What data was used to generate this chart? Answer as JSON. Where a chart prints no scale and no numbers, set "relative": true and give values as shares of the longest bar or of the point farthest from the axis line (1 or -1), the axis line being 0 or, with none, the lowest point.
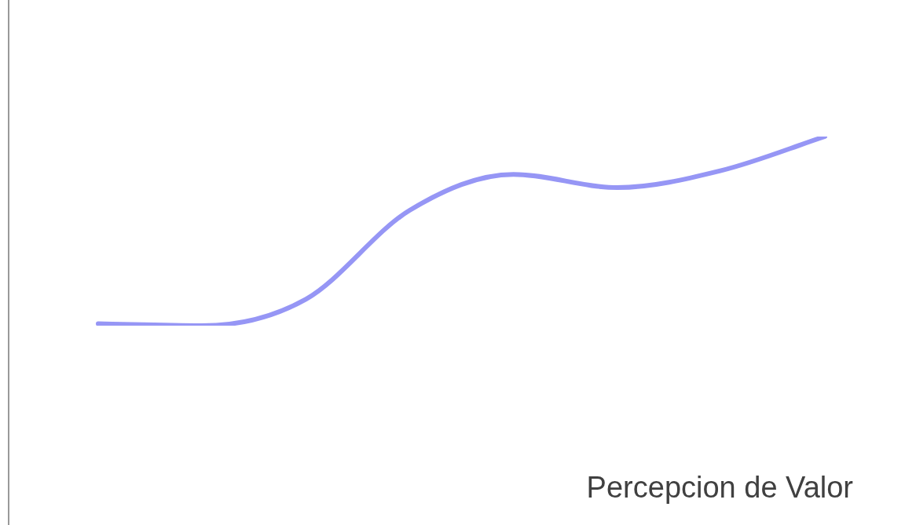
{
  "chart_data": {
    "type": "line",
    "relative": true,
    "xlabel": "Percepcion de Valor",
    "categories": [
      null,
      null,
      null,
      null,
      null,
      null,
      null,
      null
    ],
    "series": [
      {
        "color": "#9696f5",
        "values": [
          0.01,
          0,
          0.14,
          0.61,
          0.8,
          0.73,
          0.82,
          1
        ]
      }
    ],
    "marker": "none",
    "line_style": "solid",
    "legend": false
  }
}
